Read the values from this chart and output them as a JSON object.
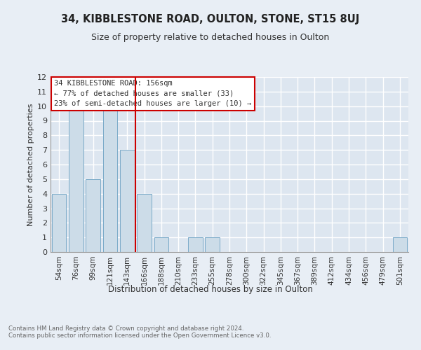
{
  "title_line1": "34, KIBBLESTONE ROAD, OULTON, STONE, ST15 8UJ",
  "title_line2": "Size of property relative to detached houses in Oulton",
  "xlabel": "Distribution of detached houses by size in Oulton",
  "ylabel": "Number of detached properties",
  "categories": [
    "54sqm",
    "76sqm",
    "99sqm",
    "121sqm",
    "143sqm",
    "166sqm",
    "188sqm",
    "210sqm",
    "233sqm",
    "255sqm",
    "278sqm",
    "300sqm",
    "322sqm",
    "345sqm",
    "367sqm",
    "389sqm",
    "412sqm",
    "434sqm",
    "456sqm",
    "479sqm",
    "501sqm"
  ],
  "values": [
    4,
    10,
    5,
    10,
    7,
    4,
    1,
    0,
    1,
    1,
    0,
    0,
    0,
    0,
    0,
    0,
    0,
    0,
    0,
    0,
    1
  ],
  "bar_color": "#ccdce8",
  "bar_edge_color": "#7aaac8",
  "ylim": [
    0,
    12
  ],
  "yticks": [
    0,
    1,
    2,
    3,
    4,
    5,
    6,
    7,
    8,
    9,
    10,
    11,
    12
  ],
  "red_line_x": 4.5,
  "annotation_title": "34 KIBBLESTONE ROAD: 156sqm",
  "annotation_line2": "← 77% of detached houses are smaller (33)",
  "annotation_line3": "23% of semi-detached houses are larger (10) →",
  "annotation_box_color": "#ffffff",
  "annotation_box_edge": "#cc0000",
  "footer": "Contains HM Land Registry data © Crown copyright and database right 2024.\nContains public sector information licensed under the Open Government Licence v3.0.",
  "bg_color": "#e8eef5",
  "plot_bg_color": "#dde6f0",
  "grid_color": "#ffffff",
  "title1_fontsize": 10.5,
  "title2_fontsize": 9,
  "ylabel_fontsize": 8,
  "xlabel_fontsize": 8.5,
  "tick_fontsize": 7.5,
  "ann_fontsize": 7.5,
  "footer_fontsize": 6.2
}
